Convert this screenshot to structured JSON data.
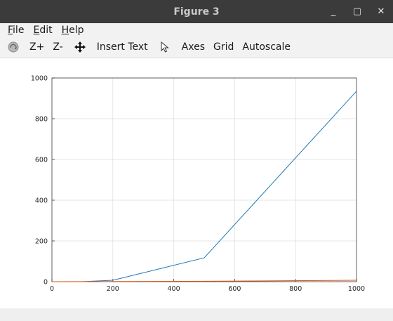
{
  "window": {
    "title": "Figure 3",
    "minimize_glyph": "_",
    "maximize_glyph": "▢",
    "close_glyph": "✕"
  },
  "menu": {
    "file": {
      "mnemonic": "F",
      "rest": "ile"
    },
    "edit": {
      "mnemonic": "E",
      "rest": "dit"
    },
    "help": {
      "mnemonic": "H",
      "rest": "elp"
    }
  },
  "toolbar": {
    "zoom_in": "Z+",
    "zoom_out": "Z-",
    "insert_text": "Insert Text",
    "axes": "Axes",
    "grid": "Grid",
    "autoscale": "Autoscale"
  },
  "colors": {
    "series1": "#1f77b4",
    "series2": "#d95319"
  },
  "chart_data": {
    "type": "line",
    "xlim": [
      0,
      1000
    ],
    "ylim": [
      0,
      1000
    ],
    "xticks": [
      0,
      200,
      400,
      600,
      800,
      1000
    ],
    "yticks": [
      0,
      200,
      400,
      600,
      800,
      1000
    ],
    "grid": true,
    "series": [
      {
        "x": [
          0,
          100,
          200,
          500,
          1000
        ],
        "y": [
          0,
          0,
          7,
          117,
          935
        ],
        "color": "#1f77b4"
      },
      {
        "x": [
          0,
          500,
          1000
        ],
        "y": [
          0,
          2,
          7
        ],
        "color": "#d95319"
      }
    ]
  }
}
